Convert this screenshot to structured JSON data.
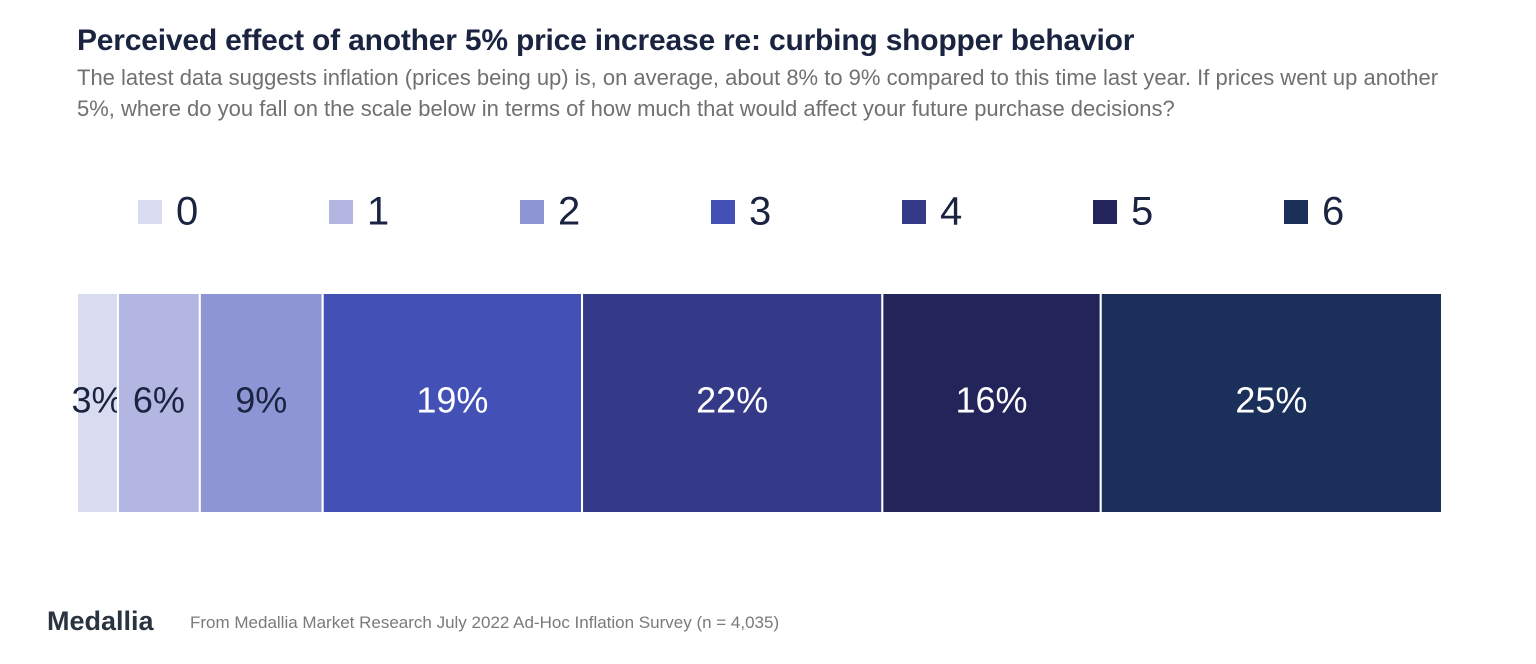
{
  "chart_data": {
    "type": "bar",
    "orientation": "horizontal",
    "stacked": true,
    "title": "Perceived effect of another 5% price increase re: curbing shopper behavior",
    "subtitle": "The latest data suggests inflation (prices being up) is, on average, about 8% to 9% compared to this time last year.  If prices went up another 5%, where do you fall on the scale below in terms of how much that would affect your future purchase decisions?",
    "legend": "top",
    "series": [
      {
        "name": "0",
        "color": "#d9dbf0",
        "values": [
          3
        ],
        "value_labels": [
          "3%"
        ]
      },
      {
        "name": "1",
        "color": "#b3b6e0",
        "values": [
          6
        ],
        "value_labels": [
          "6%"
        ]
      },
      {
        "name": "2",
        "color": "#8e95d4",
        "values": [
          9
        ],
        "value_labels": [
          "9%"
        ]
      },
      {
        "name": "3",
        "color": "#4350b6",
        "values": [
          19
        ],
        "value_labels": [
          "19%"
        ]
      },
      {
        "name": "4",
        "color": "#343a87",
        "values": [
          22
        ],
        "value_labels": [
          "22%"
        ]
      },
      {
        "name": "5",
        "color": "#23245a",
        "values": [
          16
        ],
        "value_labels": [
          "16%"
        ]
      },
      {
        "name": "6",
        "color": "#1b2f5b",
        "values": [
          25
        ],
        "value_labels": [
          "25%"
        ]
      }
    ]
  },
  "footer": {
    "logo": "Medallia",
    "source": "From Medallia Market Research July 2022 Ad-Hoc Inflation Survey (n = 4,035)"
  }
}
